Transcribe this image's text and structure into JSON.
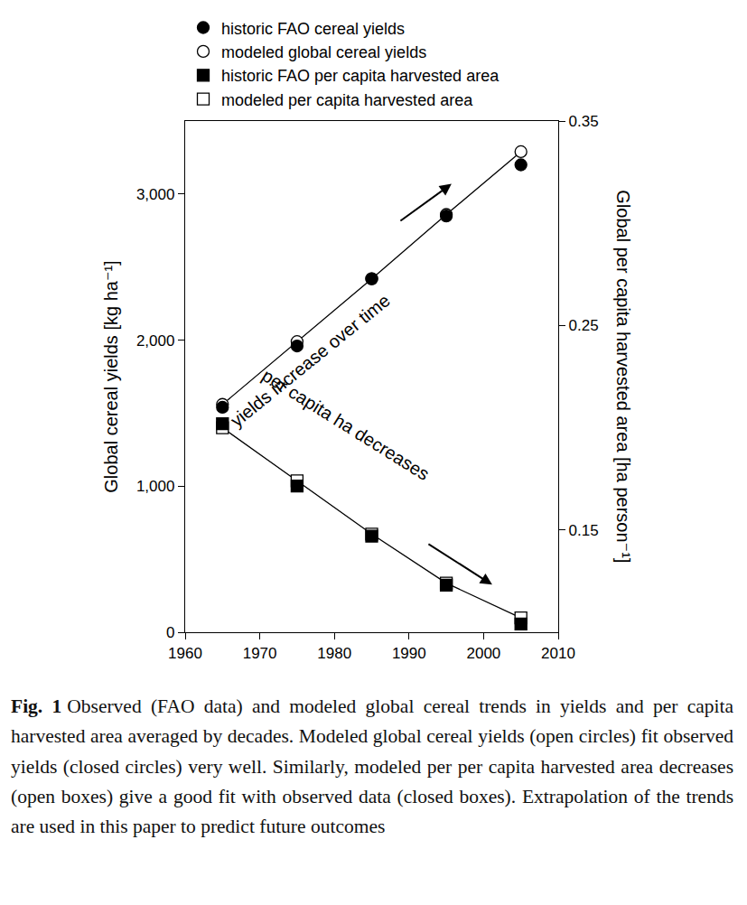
{
  "chart_data": {
    "type": "scatter",
    "x": [
      1965,
      1975,
      1985,
      1995,
      2005
    ],
    "xlim": [
      1960,
      2010
    ],
    "xticks": [
      1960,
      1970,
      1980,
      1990,
      2000,
      2010
    ],
    "ylim": [
      0,
      3500
    ],
    "yticks": [
      0,
      {
        "value": 1000,
        "label": "1,000"
      },
      {
        "value": 2000,
        "label": "2,000"
      },
      {
        "value": 3000,
        "label": "3,000"
      }
    ],
    "y2lim": [
      0.1,
      0.35
    ],
    "y2ticks": [
      0.15,
      0.25,
      0.35
    ],
    "y_label": "Global cereal yields [kg ha⁻¹]",
    "y2_label": "Global per capita harvested area [ha person⁻¹]",
    "grid": false,
    "legend": "top left",
    "annotations": [
      "yields increase over time",
      "per capita ha decreases"
    ],
    "series": [
      {
        "name": "historic FAO cereal yields",
        "color": "#000000",
        "marker": "circle",
        "values": [
          1540,
          1960,
          2420,
          2850,
          3200
        ]
      },
      {
        "name": "modeled global cereal yields",
        "color": "#000000",
        "marker": "open circle",
        "line_style": "solid",
        "values": [
          1560,
          1990,
          2420,
          2860,
          3290
        ]
      },
      {
        "name": "historic FAO per capita harvested area",
        "color": "#000000",
        "marker": "square",
        "axis": "y2",
        "values": [
          0.202,
          0.1715,
          0.147,
          0.123,
          0.104
        ]
      },
      {
        "name": "modeled per capita harvested area",
        "color": "#000000",
        "marker": "open square",
        "line_style": "solid",
        "axis": "y2",
        "values": [
          0.2,
          0.174,
          0.148,
          0.124,
          0.107
        ]
      }
    ]
  },
  "caption": {
    "label": "Fig. 1",
    "text": "Observed (FAO data) and modeled global cereal trends in yields and per capita harvested area averaged by decades. Modeled global cereal yields (open circles) fit observed yields (closed circles) very well. Similarly, modeled per per capita harvested area decreases (open boxes) give a good fit with observed data (closed boxes). Extrapolation of the trends are used in this paper to predict future outcomes"
  }
}
